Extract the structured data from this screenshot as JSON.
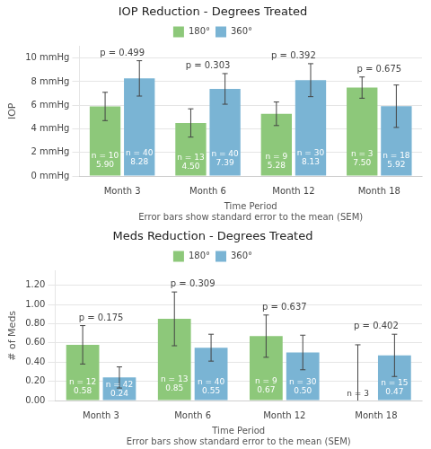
{
  "chart_data": [
    {
      "type": "bar",
      "title": "IOP Reduction - Degrees Treated",
      "categories": [
        "Month 3",
        "Month 6",
        "Month 12",
        "Month 18"
      ],
      "xlabel": [
        "Time Period",
        "Error bars show standard error to the mean (SEM)"
      ],
      "ylabel": "IOP",
      "series": [
        {
          "name": "180°",
          "color": "#8dc87a",
          "values": [
            5.9,
            4.5,
            5.28,
            7.5
          ],
          "error": [
            1.2,
            1.2,
            1.0,
            0.9
          ],
          "n_labels": [
            "n = 10",
            "n = 13",
            "n = 9",
            "n = 3"
          ],
          "value_labels": [
            "5.90",
            "4.50",
            "5.28",
            "7.50"
          ]
        },
        {
          "name": "360°",
          "color": "#7ab4d4",
          "values": [
            8.28,
            7.39,
            8.13,
            5.92
          ],
          "error": [
            1.5,
            1.3,
            1.4,
            1.8
          ],
          "n_labels": [
            "n = 40",
            "n = 40",
            "n = 30",
            "n = 18"
          ],
          "value_labels": [
            "8.28",
            "7.39",
            "8.13",
            "5.92"
          ]
        }
      ],
      "annotations": [
        "p = 0.499",
        "p = 0.303",
        "p = 0.392",
        "p = 0.675"
      ],
      "ylim": [
        0,
        11
      ],
      "yticks": [
        {
          "value": 0,
          "label": "0 mmHg"
        },
        {
          "value": 2,
          "label": "2 mmHg"
        },
        {
          "value": 4,
          "label": "4 mmHg"
        },
        {
          "value": 6,
          "label": "6 mmHg"
        },
        {
          "value": 8,
          "label": "8 mmHg"
        },
        {
          "value": 10,
          "label": "10 mmHg"
        }
      ],
      "grid": true,
      "legend": "top",
      "data_labels": true
    },
    {
      "type": "bar",
      "title": "Meds Reduction - Degrees Treated",
      "categories": [
        "Month 3",
        "Month 6",
        "Month 12",
        "Month 18"
      ],
      "xlabel": [
        "Time Period",
        "Error bars show standard error to the mean (SEM)"
      ],
      "ylabel": "# of Meds",
      "series": [
        {
          "name": "180°",
          "color": "#8dc87a",
          "values": [
            0.58,
            0.85,
            0.67,
            0.0
          ],
          "error": [
            0.2,
            0.28,
            0.22,
            0.58
          ],
          "n_labels": [
            "n = 12",
            "n = 13",
            "n = 9",
            "n = 3"
          ],
          "value_labels": [
            "0.58",
            "0.85",
            "0.67",
            null
          ]
        },
        {
          "name": "360°",
          "color": "#7ab4d4",
          "values": [
            0.24,
            0.55,
            0.5,
            0.47
          ],
          "error": [
            0.11,
            0.14,
            0.18,
            0.22
          ],
          "n_labels": [
            "n = 42",
            "n = 40",
            "n = 30",
            "n = 15"
          ],
          "value_labels": [
            "0.24",
            "0.55",
            "0.50",
            "0.47"
          ]
        }
      ],
      "annotations": [
        "p = 0.175",
        "p = 0.309",
        "p = 0.637",
        "p = 0.402"
      ],
      "ylim": [
        0,
        1.35
      ],
      "yticks": [
        {
          "value": 0,
          "label": "0.00"
        },
        {
          "value": 0.2,
          "label": "0.20"
        },
        {
          "value": 0.4,
          "label": "0.40"
        },
        {
          "value": 0.6,
          "label": "0.60"
        },
        {
          "value": 0.8,
          "label": "0.80"
        },
        {
          "value": 1.0,
          "label": "1.00"
        },
        {
          "value": 1.2,
          "label": "1.20"
        }
      ],
      "grid": true,
      "legend": "top",
      "data_labels": true
    }
  ]
}
